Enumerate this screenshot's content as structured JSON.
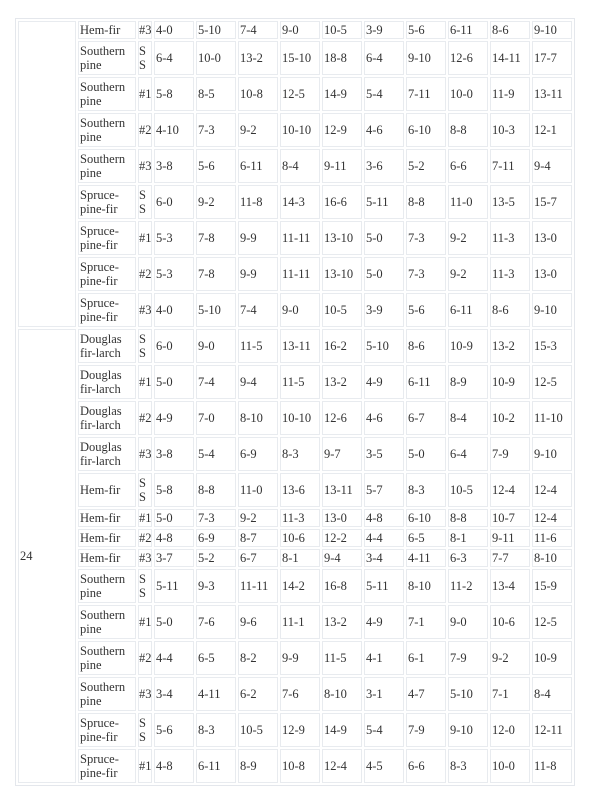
{
  "groups": [
    {
      "spacing": "",
      "rows": [
        {
          "species": "Hem-fir",
          "grade": "#3",
          "values": [
            "4-0",
            "5-10",
            "7-4",
            "9-0",
            "10-5",
            "3-9",
            "5-6",
            "6-11",
            "8-6",
            "9-10"
          ]
        },
        {
          "species": "Southern pine",
          "grade": "SS",
          "values": [
            "6-4",
            "10-0",
            "13-2",
            "15-10",
            "18-8",
            "6-4",
            "9-10",
            "12-6",
            "14-11",
            "17-7"
          ]
        },
        {
          "species": "Southern pine",
          "grade": "#1",
          "values": [
            "5-8",
            "8-5",
            "10-8",
            "12-5",
            "14-9",
            "5-4",
            "7-11",
            "10-0",
            "11-9",
            "13-11"
          ]
        },
        {
          "species": "Southern pine",
          "grade": "#2",
          "values": [
            "4-10",
            "7-3",
            "9-2",
            "10-10",
            "12-9",
            "4-6",
            "6-10",
            "8-8",
            "10-3",
            "12-1"
          ]
        },
        {
          "species": "Southern pine",
          "grade": "#3",
          "values": [
            "3-8",
            "5-6",
            "6-11",
            "8-4",
            "9-11",
            "3-6",
            "5-2",
            "6-6",
            "7-11",
            "9-4"
          ]
        },
        {
          "species": "Spruce-pine-fir",
          "grade": "SS",
          "values": [
            "6-0",
            "9-2",
            "11-8",
            "14-3",
            "16-6",
            "5-11",
            "8-8",
            "11-0",
            "13-5",
            "15-7"
          ]
        },
        {
          "species": "Spruce-pine-fir",
          "grade": "#1",
          "values": [
            "5-3",
            "7-8",
            "9-9",
            "11-11",
            "13-10",
            "5-0",
            "7-3",
            "9-2",
            "11-3",
            "13-0"
          ]
        },
        {
          "species": "Spruce-pine-fir",
          "grade": "#2",
          "values": [
            "5-3",
            "7-8",
            "9-9",
            "11-11",
            "13-10",
            "5-0",
            "7-3",
            "9-2",
            "11-3",
            "13-0"
          ]
        },
        {
          "species": "Spruce-pine-fir",
          "grade": "#3",
          "values": [
            "4-0",
            "5-10",
            "7-4",
            "9-0",
            "10-5",
            "3-9",
            "5-6",
            "6-11",
            "8-6",
            "9-10"
          ]
        }
      ]
    },
    {
      "spacing": "24",
      "rows": [
        {
          "species": "Douglas fir-larch",
          "grade": "SS",
          "values": [
            "6-0",
            "9-0",
            "11-5",
            "13-11",
            "16-2",
            "5-10",
            "8-6",
            "10-9",
            "13-2",
            "15-3"
          ]
        },
        {
          "species": "Douglas fir-larch",
          "grade": "#1",
          "values": [
            "5-0",
            "7-4",
            "9-4",
            "11-5",
            "13-2",
            "4-9",
            "6-11",
            "8-9",
            "10-9",
            "12-5"
          ]
        },
        {
          "species": "Douglas fir-larch",
          "grade": "#2",
          "values": [
            "4-9",
            "7-0",
            "8-10",
            "10-10",
            "12-6",
            "4-6",
            "6-7",
            "8-4",
            "10-2",
            "11-10"
          ]
        },
        {
          "species": "Douglas fir-larch",
          "grade": "#3",
          "values": [
            "3-8",
            "5-4",
            "6-9",
            "8-3",
            "9-7",
            "3-5",
            "5-0",
            "6-4",
            "7-9",
            "9-10"
          ]
        },
        {
          "species": "Hem-fir",
          "grade": "SS",
          "values": [
            "5-8",
            "8-8",
            "11-0",
            "13-6",
            "13-11",
            "5-7",
            "8-3",
            "10-5",
            "12-4",
            "12-4"
          ]
        },
        {
          "species": "Hem-fir",
          "grade": "#1",
          "values": [
            "5-0",
            "7-3",
            "9-2",
            "11-3",
            "13-0",
            "4-8",
            "6-10",
            "8-8",
            "10-7",
            "12-4"
          ]
        },
        {
          "species": "Hem-fir",
          "grade": "#2",
          "values": [
            "4-8",
            "6-9",
            "8-7",
            "10-6",
            "12-2",
            "4-4",
            "6-5",
            "8-1",
            "9-11",
            "11-6"
          ]
        },
        {
          "species": "Hem-fir",
          "grade": "#3",
          "values": [
            "3-7",
            "5-2",
            "6-7",
            "8-1",
            "9-4",
            "3-4",
            "4-11",
            "6-3",
            "7-7",
            "8-10"
          ]
        },
        {
          "species": "Southern pine",
          "grade": "SS",
          "values": [
            "5-11",
            "9-3",
            "11-11",
            "14-2",
            "16-8",
            "5-11",
            "8-10",
            "11-2",
            "13-4",
            "15-9"
          ]
        },
        {
          "species": "Southern pine",
          "grade": "#1",
          "values": [
            "5-0",
            "7-6",
            "9-6",
            "11-1",
            "13-2",
            "4-9",
            "7-1",
            "9-0",
            "10-6",
            "12-5"
          ]
        },
        {
          "species": "Southern pine",
          "grade": "#2",
          "values": [
            "4-4",
            "6-5",
            "8-2",
            "9-9",
            "11-5",
            "4-1",
            "6-1",
            "7-9",
            "9-2",
            "10-9"
          ]
        },
        {
          "species": "Southern pine",
          "grade": "#3",
          "values": [
            "3-4",
            "4-11",
            "6-2",
            "7-6",
            "8-10",
            "3-1",
            "4-7",
            "5-10",
            "7-1",
            "8-4"
          ]
        },
        {
          "species": "Spruce-pine-fir",
          "grade": "SS",
          "values": [
            "5-6",
            "8-3",
            "10-5",
            "12-9",
            "14-9",
            "5-4",
            "7-9",
            "9-10",
            "12-0",
            "12-11"
          ]
        },
        {
          "species": "Spruce-pine-fir",
          "grade": "#1",
          "values": [
            "4-8",
            "6-11",
            "8-9",
            "10-8",
            "12-4",
            "4-5",
            "6-6",
            "8-3",
            "10-0",
            "11-8"
          ]
        }
      ]
    }
  ]
}
